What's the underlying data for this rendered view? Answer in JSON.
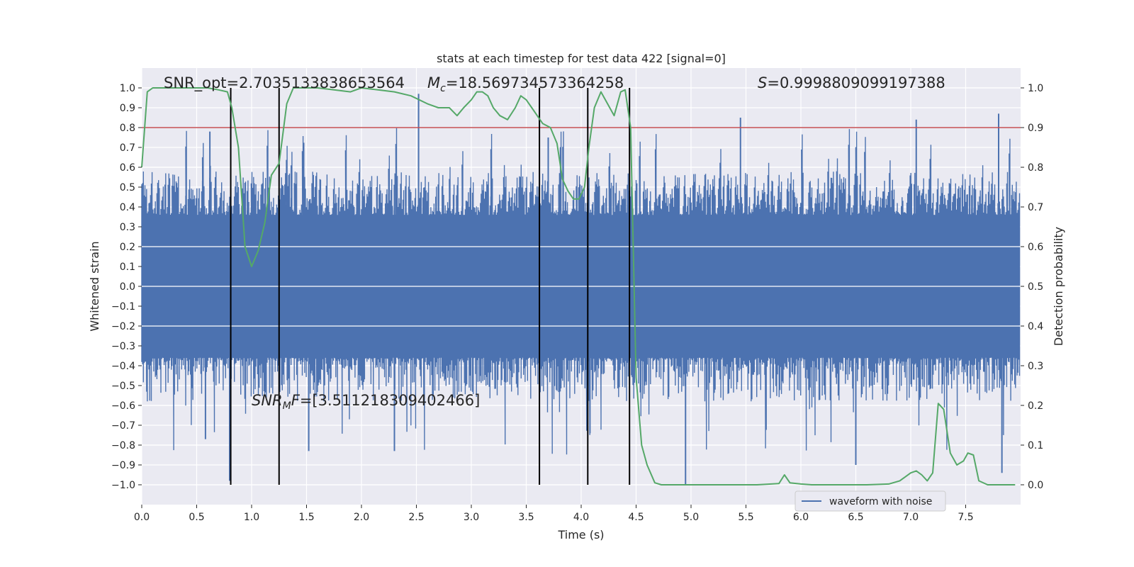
{
  "chart_data": {
    "type": "line",
    "title": "stats at each timestep for test data 422 [signal=0]",
    "xlabel": "Time (s)",
    "ylabel": "Whitened strain",
    "y2label": "Detection probability",
    "xlim": [
      0.0,
      8.0
    ],
    "ylim": [
      -1.1,
      1.1
    ],
    "y2lim": [
      -0.05,
      1.05
    ],
    "xticks": [
      0.0,
      0.5,
      1.0,
      1.5,
      2.0,
      2.5,
      3.0,
      3.5,
      4.0,
      4.5,
      5.0,
      5.5,
      6.0,
      6.5,
      7.0,
      7.5
    ],
    "xtick_labels": [
      "0.0",
      "0.5",
      "1.0",
      "1.5",
      "2.0",
      "2.5",
      "3.0",
      "3.5",
      "4.0",
      "4.5",
      "5.0",
      "5.5",
      "6.0",
      "6.5",
      "7.0",
      "7.5"
    ],
    "yticks": [
      1.0,
      0.9,
      0.8,
      0.7,
      0.6,
      0.5,
      0.4,
      0.3,
      0.2,
      0.1,
      0.0,
      -0.1,
      -0.2,
      -0.3,
      -0.4,
      -0.5,
      -0.6,
      -0.7,
      -0.8,
      -0.9,
      -1.0
    ],
    "ytick_labels": [
      "1.0",
      "0.9",
      "0.8",
      "0.7",
      "0.6",
      "0.5",
      "0.4",
      "0.3",
      "0.2",
      "0.1",
      "0.0",
      "−0.1",
      "−0.2",
      "−0.3",
      "−0.4",
      "−0.5",
      "−0.6",
      "−0.7",
      "−0.8",
      "−0.9",
      "−1.0"
    ],
    "y2ticks": [
      1.0,
      0.9,
      0.8,
      0.7,
      0.6,
      0.5,
      0.4,
      0.3,
      0.2,
      0.1,
      0.0
    ],
    "y2tick_labels": [
      "1.0",
      "0.9",
      "0.8",
      "0.7",
      "0.6",
      "0.5",
      "0.4",
      "0.3",
      "0.2",
      "0.1",
      "0.0"
    ],
    "grid": true,
    "legend": {
      "entries": [
        "waveform with noise"
      ],
      "placement": "lower-right"
    },
    "series": [
      {
        "name": "waveform with noise",
        "axis": "left",
        "color": "#4c72b0",
        "description": "dense noisy strain time series, roughly +/-0.45 with spikes to +/-1.0",
        "sample_count": 1100,
        "spikes": [
          {
            "x": 0.8,
            "y": -0.98
          },
          {
            "x": 2.52,
            "y": 0.97
          },
          {
            "x": 4.95,
            "y": -1.0
          },
          {
            "x": 5.45,
            "y": 0.85
          },
          {
            "x": 7.05,
            "y": 0.84
          },
          {
            "x": 7.8,
            "y": 0.87
          },
          {
            "x": 7.83,
            "y": -0.94
          },
          {
            "x": 6.5,
            "y": -0.9
          },
          {
            "x": 1.52,
            "y": -0.83
          },
          {
            "x": 2.3,
            "y": -0.83
          },
          {
            "x": 0.58,
            "y": -0.77
          },
          {
            "x": 0.62,
            "y": 0.78
          },
          {
            "x": 3.7,
            "y": 0.75
          },
          {
            "x": 4.08,
            "y": -0.74
          }
        ]
      },
      {
        "name": "detection probability",
        "axis": "right",
        "color": "#55a868",
        "x": [
          0.0,
          0.05,
          0.1,
          0.2,
          0.3,
          0.4,
          0.5,
          0.6,
          0.7,
          0.78,
          0.82,
          0.88,
          0.94,
          1.0,
          1.06,
          1.12,
          1.18,
          1.25,
          1.32,
          1.38,
          1.45,
          1.52,
          1.6,
          1.75,
          1.9,
          2.0,
          2.15,
          2.3,
          2.45,
          2.6,
          2.7,
          2.8,
          2.87,
          2.93,
          3.0,
          3.05,
          3.1,
          3.15,
          3.2,
          3.26,
          3.33,
          3.4,
          3.45,
          3.5,
          3.55,
          3.6,
          3.65,
          3.72,
          3.78,
          3.83,
          3.88,
          3.93,
          3.98,
          4.03,
          4.07,
          4.12,
          4.18,
          4.24,
          4.3,
          4.36,
          4.4,
          4.45,
          4.5,
          4.55,
          4.6,
          4.67,
          4.73,
          4.8,
          4.9,
          5.0,
          5.2,
          5.4,
          5.6,
          5.8,
          5.85,
          5.9,
          6.0,
          6.1,
          6.2,
          6.4,
          6.6,
          6.8,
          6.9,
          6.95,
          7.0,
          7.05,
          7.1,
          7.15,
          7.2,
          7.25,
          7.3,
          7.36,
          7.42,
          7.48,
          7.52,
          7.57,
          7.62,
          7.7,
          7.85,
          7.95
        ],
        "y": [
          0.8,
          0.99,
          1.0,
          1.0,
          1.0,
          1.0,
          1.0,
          1.0,
          0.995,
          0.99,
          0.95,
          0.85,
          0.6,
          0.55,
          0.59,
          0.66,
          0.78,
          0.81,
          0.96,
          1.0,
          1.0,
          1.0,
          1.0,
          0.995,
          0.99,
          1.0,
          0.995,
          0.99,
          0.98,
          0.96,
          0.95,
          0.95,
          0.93,
          0.95,
          0.97,
          0.99,
          0.99,
          0.98,
          0.95,
          0.93,
          0.92,
          0.95,
          0.98,
          0.97,
          0.95,
          0.93,
          0.91,
          0.9,
          0.86,
          0.77,
          0.74,
          0.72,
          0.72,
          0.75,
          0.85,
          0.95,
          0.99,
          0.96,
          0.93,
          0.99,
          0.995,
          0.9,
          0.27,
          0.1,
          0.05,
          0.005,
          0.0,
          0.0,
          0.0,
          0.0,
          0.0,
          0.0,
          0.0,
          0.003,
          0.025,
          0.005,
          0.002,
          0.0,
          0.0,
          0.0,
          0.0,
          0.002,
          0.01,
          0.02,
          0.03,
          0.035,
          0.025,
          0.01,
          0.03,
          0.205,
          0.19,
          0.08,
          0.05,
          0.06,
          0.08,
          0.075,
          0.01,
          0.0,
          0.0,
          0.0
        ]
      }
    ],
    "threshold_line": {
      "axis": "right",
      "y": 0.9,
      "color": "#c44e52"
    },
    "vertical_lines": {
      "x": [
        0.81,
        1.25,
        3.62,
        4.06,
        4.44
      ],
      "color": "#000000",
      "ymin": -1.0,
      "ymax": 1.0
    },
    "annotations": {
      "snr_opt": "SNR_opt=2.7035133838653564",
      "mc_prefix": "M",
      "mc_sub": "c",
      "mc_value": "=18.569734573364258",
      "s_prefix": "S",
      "s_value": "=0.9998809099197388",
      "snrmf_prefix": "SNR",
      "snrmf_sub": "M",
      "snrmf_suffix": "F",
      "snrmf_value": "=[3.511218309402466]"
    }
  }
}
